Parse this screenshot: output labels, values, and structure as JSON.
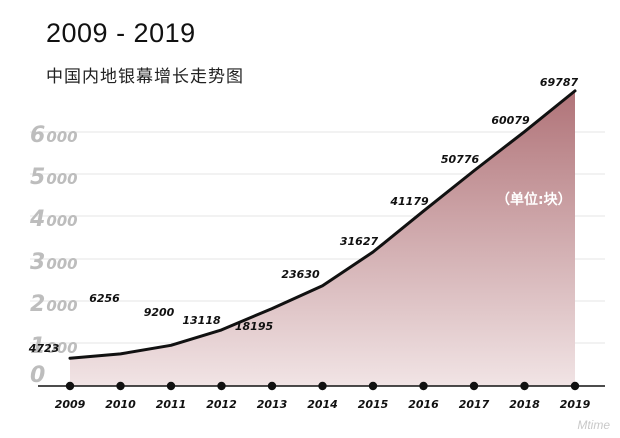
{
  "title": "2009 - 2019",
  "subtitle": "中国内地银幕增长走势图",
  "watermark": "Mtime",
  "chart_data": {
    "type": "area",
    "x": [
      "2009",
      "2010",
      "2011",
      "2012",
      "2013",
      "2014",
      "2015",
      "2016",
      "2017",
      "2018",
      "2019"
    ],
    "values": [
      4723,
      6256,
      9200,
      13118,
      18195,
      23630,
      31627,
      41179,
      50776,
      60079,
      69787
    ],
    "data_labels": [
      "4723",
      "6256",
      "9200",
      "13118",
      "18195",
      "23630",
      "31627",
      "41179",
      "50776",
      "60079",
      "69787"
    ],
    "y_ticks": [
      {
        "lead": "0",
        "rest": ""
      },
      {
        "lead": "1",
        "rest": "000"
      },
      {
        "lead": "2",
        "rest": "000"
      },
      {
        "lead": "3",
        "rest": "000"
      },
      {
        "lead": "4",
        "rest": "000"
      },
      {
        "lead": "5",
        "rest": "000"
      },
      {
        "lead": "6",
        "rest": "000"
      }
    ],
    "unit_label": "（单位:块）",
    "grid": true,
    "colors": {
      "line": "#111111",
      "area_top": "#b07378",
      "area_bottom": "#f1e4e5",
      "grid": "#e6e6e6",
      "axis": "#111111"
    }
  }
}
